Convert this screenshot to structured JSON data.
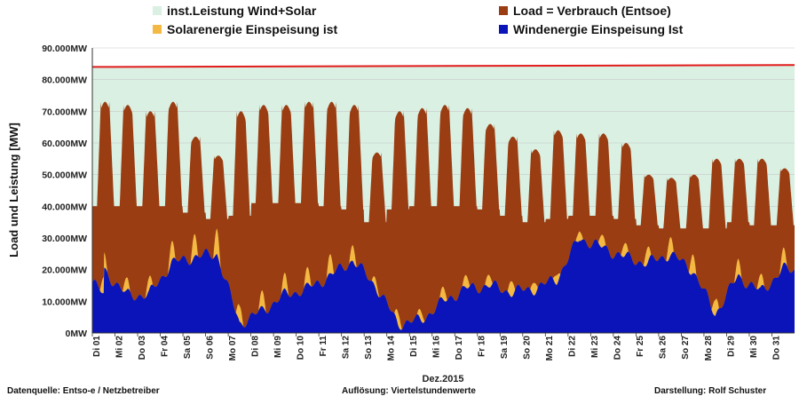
{
  "chart_data": {
    "type": "area",
    "title": "",
    "xlabel": "Dez.2015",
    "ylabel": "Load und Leistung  [MW]",
    "ylim": [
      0,
      90000
    ],
    "y_ticks": [
      "0MW",
      "10.000MW",
      "20.000MW",
      "30.000MW",
      "40.000MW",
      "50.000MW",
      "60.000MW",
      "70.000MW",
      "80.000MW",
      "90.000MW"
    ],
    "y_tick_values": [
      0,
      10000,
      20000,
      30000,
      40000,
      50000,
      60000,
      70000,
      80000,
      90000
    ],
    "x_ticks": [
      "Di 01",
      "Mi 02",
      "Do 03",
      "Fr 04",
      "Sa 05",
      "So 06",
      "Mo 07",
      "Di 08",
      "Mi 09",
      "Do 10",
      "Fr 11",
      "Sa 12",
      "So 13",
      "Mo 14",
      "Di 15",
      "Mi 16",
      "Do 17",
      "Fr 18",
      "Sa 19",
      "So 20",
      "Mo 21",
      "Di 22",
      "Mi 23",
      "Do 24",
      "Fr 25",
      "Sa 26",
      "So 27",
      "Mo 28",
      "Di 29",
      "Mi 30",
      "Do 31"
    ],
    "grid": true,
    "legend_position": "top",
    "legend": [
      {
        "label": "inst.Leistung Wind+Solar",
        "color": "#d9f0e2"
      },
      {
        "label": "Load =  Verbrauch (Entsoe)",
        "color": "#9a3d12"
      },
      {
        "label": "Solarenergie Einspeisung ist",
        "color": "#f4b942"
      },
      {
        "label": "Windenergie Einspeisung Ist",
        "color": "#0a14b8"
      }
    ],
    "installed_capacity_MW": {
      "start": 84000,
      "end": 84600
    },
    "daily": {
      "days": [
        1,
        2,
        3,
        4,
        5,
        6,
        7,
        8,
        9,
        10,
        11,
        12,
        13,
        14,
        15,
        16,
        17,
        18,
        19,
        20,
        21,
        22,
        23,
        24,
        25,
        26,
        27,
        28,
        29,
        30,
        31
      ],
      "load_peak_MW": [
        73000,
        72000,
        70000,
        73000,
        62000,
        56000,
        70000,
        72000,
        72000,
        73000,
        73000,
        72000,
        57000,
        70000,
        71000,
        72000,
        71000,
        66000,
        62000,
        58000,
        64000,
        63000,
        63000,
        60000,
        50000,
        49000,
        50000,
        55000,
        55000,
        55000,
        52000
      ],
      "load_min_MW": [
        40000,
        40000,
        40000,
        40000,
        38000,
        36000,
        37000,
        41000,
        41000,
        41000,
        40000,
        39000,
        35000,
        39000,
        40000,
        40000,
        40000,
        39000,
        37000,
        35000,
        36000,
        37000,
        37000,
        36000,
        34000,
        33000,
        33000,
        33000,
        35000,
        34000,
        34000
      ],
      "wind_avg_MW": [
        20000,
        12000,
        12000,
        22000,
        24000,
        25000,
        3000,
        7000,
        12000,
        14000,
        18000,
        23000,
        15000,
        3000,
        4000,
        10000,
        14000,
        15000,
        13000,
        14000,
        17000,
        30000,
        27000,
        24000,
        22000,
        25000,
        20000,
        6000,
        18000,
        13000,
        20000
      ],
      "solar_peak_MW": [
        5000,
        4000,
        4000,
        6000,
        7000,
        8000,
        5000,
        5000,
        5000,
        5000,
        6000,
        5000,
        3000,
        4000,
        3000,
        4000,
        4000,
        4000,
        5000,
        4000,
        3000,
        3000,
        4000,
        4000,
        5000,
        6000,
        6000,
        5000,
        5000,
        4000,
        5000
      ]
    }
  },
  "footer": {
    "source": "Datenquelle:  Entso-e  / Netzbetreiber",
    "resolution": "Auflösung:  Viertelstundenwerte",
    "author": "Darstellung: Rolf Schuster"
  }
}
